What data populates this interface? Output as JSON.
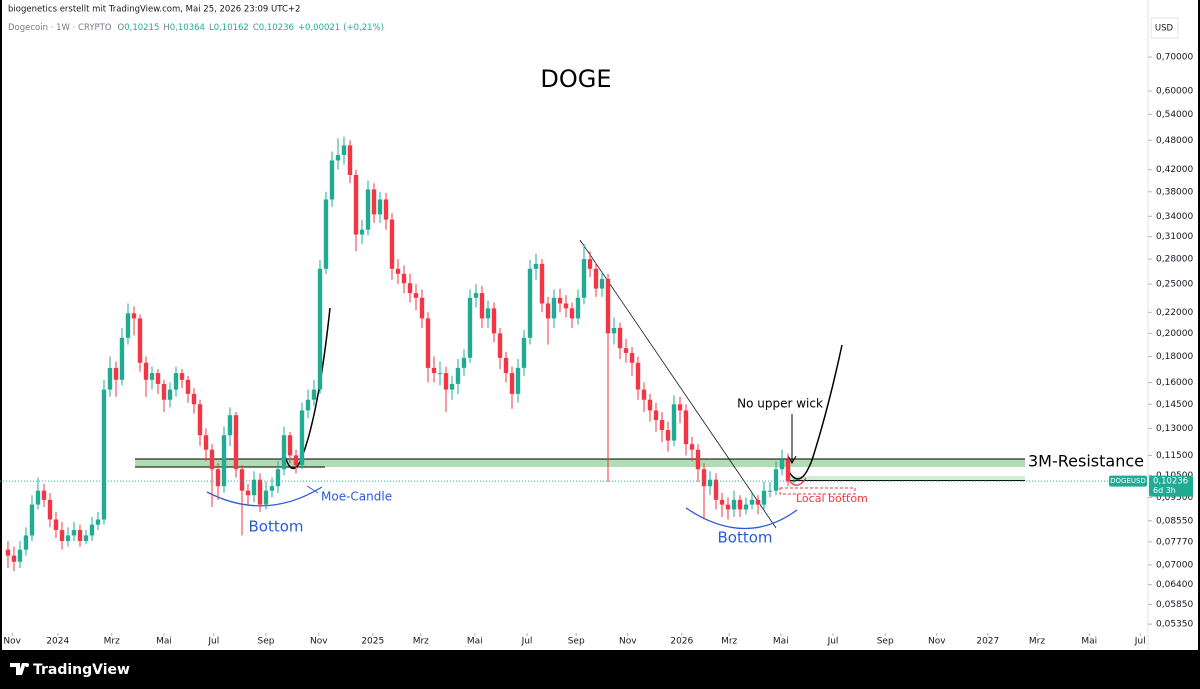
{
  "chart_data": {
    "type": "candlestick",
    "attribution": "biogenetics erstellt mit TradingView.com, Mai 25, 2026 23:09 UTC+2",
    "symbol_info": "Dogecoin · 1W · CRYPTO",
    "legend_values": [
      {
        "key": "O",
        "value": 0.10215,
        "label": "0,10215"
      },
      {
        "key": "H",
        "value": 0.10364,
        "label": "0,10364"
      },
      {
        "key": "L",
        "value": 0.10162,
        "label": "0,10162"
      },
      {
        "key": "C",
        "value": 0.10236,
        "label": "0,10236"
      }
    ],
    "change": {
      "value": 0.00021,
      "label": "+0,00021"
    },
    "change_pct": {
      "value": 0.21,
      "label": "(+0,21%)"
    },
    "currency": "USD",
    "title": "DOGE",
    "annotations": [
      "3M-Resistance",
      "No upper wick",
      "Moe-Candle",
      "Bottom",
      "Bottom",
      "Local bottom"
    ],
    "price_tag": {
      "symbol": "DOGEUSD",
      "value": 0.10236,
      "label": "0,10236",
      "countdown": "6d 3h"
    },
    "brand": "TradingView",
    "up_color": "#22ab94",
    "down_color": "#f23645",
    "log_scale": true,
    "ylim": [
      0.0514,
      0.828
    ],
    "yticks": [
      {
        "value": 0.7,
        "label": "0,70000"
      },
      {
        "value": 0.6,
        "label": "0,60000"
      },
      {
        "value": 0.54,
        "label": "0,54000"
      },
      {
        "value": 0.48,
        "label": "0,48000"
      },
      {
        "value": 0.42,
        "label": "0,42000"
      },
      {
        "value": 0.38,
        "label": "0,38000"
      },
      {
        "value": 0.34,
        "label": "0,34000"
      },
      {
        "value": 0.31,
        "label": "0,31000"
      },
      {
        "value": 0.28,
        "label": "0,28000"
      },
      {
        "value": 0.25,
        "label": "0,25000"
      },
      {
        "value": 0.22,
        "label": "0,22000"
      },
      {
        "value": 0.2,
        "label": "0,20000"
      },
      {
        "value": 0.18,
        "label": "0,18000"
      },
      {
        "value": 0.16,
        "label": "0,16000"
      },
      {
        "value": 0.145,
        "label": "0,14500"
      },
      {
        "value": 0.13,
        "label": "0,13000"
      },
      {
        "value": 0.115,
        "label": "0,11500"
      },
      {
        "value": 0.105,
        "label": "0,10500"
      },
      {
        "value": 0.095,
        "label": "0,09500"
      },
      {
        "value": 0.0855,
        "label": "0,08550"
      },
      {
        "value": 0.0777,
        "label": "0,07770"
      },
      {
        "value": 0.07,
        "label": "0,07000"
      },
      {
        "value": 0.064,
        "label": "0,06400"
      },
      {
        "value": 0.0585,
        "label": "0,05850"
      },
      {
        "value": 0.0535,
        "label": "0,05350"
      }
    ],
    "xlim": [
      -1.33,
      189.83
    ],
    "xticks": [
      {
        "value": 0.7,
        "label": "Nov"
      },
      {
        "value": 8.3,
        "label": "2024"
      },
      {
        "value": 17.3,
        "label": "Mrz"
      },
      {
        "value": 26,
        "label": "Mai"
      },
      {
        "value": 34.3,
        "label": "Jul"
      },
      {
        "value": 43,
        "label": "Sep"
      },
      {
        "value": 51.8,
        "label": "Nov"
      },
      {
        "value": 60.8,
        "label": "2025"
      },
      {
        "value": 68.8,
        "label": "Mrz"
      },
      {
        "value": 77.8,
        "label": "Mai"
      },
      {
        "value": 86.5,
        "label": "Jul"
      },
      {
        "value": 94.7,
        "label": "Sep"
      },
      {
        "value": 103.3,
        "label": "Nov"
      },
      {
        "value": 112.3,
        "label": "2026"
      },
      {
        "value": 120.2,
        "label": "Mrz"
      },
      {
        "value": 128.8,
        "label": "Mai"
      },
      {
        "value": 137.5,
        "label": "Jul"
      },
      {
        "value": 146.2,
        "label": "Sep"
      },
      {
        "value": 154.8,
        "label": "Nov"
      },
      {
        "value": 163.3,
        "label": "2027"
      },
      {
        "value": 171.5,
        "label": "Mrz"
      },
      {
        "value": 180.2,
        "label": "Mai"
      },
      {
        "value": 188.7,
        "label": "Jul"
      }
    ],
    "open": [
      0.075,
      0.073,
      0.071,
      0.075,
      0.08,
      0.092,
      0.098,
      0.094,
      0.086,
      0.082,
      0.078,
      0.08,
      0.082,
      0.078,
      0.08,
      0.084,
      0.086,
      0.155,
      0.171,
      0.162,
      0.196,
      0.219,
      0.214,
      0.175,
      0.162,
      0.167,
      0.159,
      0.148,
      0.155,
      0.167,
      0.162,
      0.152,
      0.145,
      0.126,
      0.118,
      0.108,
      0.1,
      0.126,
      0.138,
      0.108,
      0.098,
      0.096,
      0.103,
      0.092,
      0.098,
      0.1,
      0.108,
      0.126,
      0.115,
      0.11,
      0.141,
      0.148,
      0.155,
      0.268,
      0.367,
      0.438,
      0.449,
      0.469,
      0.41,
      0.313,
      0.32,
      0.384,
      0.343,
      0.367,
      0.335,
      0.268,
      0.262,
      0.251,
      0.24,
      0.235,
      0.214,
      0.171,
      0.167,
      0.167,
      0.155,
      0.159,
      0.171,
      0.179,
      0.235,
      0.24,
      0.214,
      0.224,
      0.2,
      0.179,
      0.167,
      0.152,
      0.171,
      0.196,
      0.268,
      0.274,
      0.229,
      0.214,
      0.235,
      0.229,
      0.224,
      0.214,
      0.235,
      0.28,
      0.268,
      0.245,
      0.256,
      0.2,
      0.205,
      0.187,
      0.183,
      0.175,
      0.155,
      0.148,
      0.141,
      0.135,
      0.129,
      0.123,
      0.145,
      0.141,
      0.121,
      0.118,
      0.108,
      0.1,
      0.103,
      0.094,
      0.092,
      0.09,
      0.094,
      0.09,
      0.092,
      0.094,
      0.092,
      0.098,
      0.098,
      0.108,
      0.113,
      0.10215
    ],
    "high": [
      0.078,
      0.076,
      0.078,
      0.083,
      0.096,
      0.104,
      0.101,
      0.097,
      0.089,
      0.085,
      0.083,
      0.085,
      0.084,
      0.082,
      0.087,
      0.089,
      0.162,
      0.18,
      0.176,
      0.205,
      0.229,
      0.226,
      0.218,
      0.18,
      0.172,
      0.17,
      0.162,
      0.16,
      0.172,
      0.17,
      0.165,
      0.156,
      0.148,
      0.13,
      0.121,
      0.111,
      0.131,
      0.143,
      0.14,
      0.11,
      0.101,
      0.107,
      0.106,
      0.102,
      0.104,
      0.112,
      0.131,
      0.128,
      0.118,
      0.146,
      0.155,
      0.162,
      0.279,
      0.38,
      0.456,
      0.484,
      0.488,
      0.48,
      0.42,
      0.335,
      0.4,
      0.395,
      0.38,
      0.378,
      0.345,
      0.28,
      0.272,
      0.262,
      0.25,
      0.244,
      0.22,
      0.18,
      0.176,
      0.172,
      0.165,
      0.178,
      0.186,
      0.244,
      0.25,
      0.248,
      0.232,
      0.23,
      0.205,
      0.184,
      0.172,
      0.178,
      0.203,
      0.279,
      0.287,
      0.28,
      0.236,
      0.244,
      0.245,
      0.238,
      0.23,
      0.244,
      0.3,
      0.29,
      0.275,
      0.265,
      0.262,
      0.215,
      0.21,
      0.195,
      0.188,
      0.18,
      0.16,
      0.152,
      0.146,
      0.14,
      0.134,
      0.151,
      0.15,
      0.145,
      0.125,
      0.121,
      0.111,
      0.107,
      0.106,
      0.097,
      0.095,
      0.098,
      0.096,
      0.095,
      0.097,
      0.096,
      0.102,
      0.102,
      0.112,
      0.118,
      0.116,
      0.10364
    ],
    "low": [
      0.069,
      0.068,
      0.069,
      0.073,
      0.078,
      0.09,
      0.091,
      0.083,
      0.079,
      0.075,
      0.076,
      0.078,
      0.076,
      0.077,
      0.078,
      0.082,
      0.084,
      0.15,
      0.15,
      0.158,
      0.19,
      0.198,
      0.168,
      0.15,
      0.155,
      0.152,
      0.14,
      0.143,
      0.15,
      0.156,
      0.146,
      0.139,
      0.12,
      0.112,
      0.091,
      0.094,
      0.097,
      0.12,
      0.104,
      0.08,
      0.092,
      0.093,
      0.089,
      0.09,
      0.095,
      0.097,
      0.105,
      0.111,
      0.106,
      0.108,
      0.136,
      0.144,
      0.152,
      0.262,
      0.355,
      0.42,
      0.43,
      0.395,
      0.29,
      0.3,
      0.312,
      0.33,
      0.33,
      0.32,
      0.255,
      0.25,
      0.24,
      0.23,
      0.222,
      0.205,
      0.16,
      0.16,
      0.158,
      0.14,
      0.148,
      0.152,
      0.165,
      0.175,
      0.225,
      0.205,
      0.205,
      0.192,
      0.17,
      0.16,
      0.142,
      0.146,
      0.165,
      0.19,
      0.255,
      0.22,
      0.19,
      0.205,
      0.22,
      0.215,
      0.205,
      0.208,
      0.228,
      0.258,
      0.236,
      0.236,
      0.102,
      0.19,
      0.178,
      0.175,
      0.165,
      0.148,
      0.14,
      0.134,
      0.128,
      0.122,
      0.117,
      0.12,
      0.133,
      0.115,
      0.112,
      0.102,
      0.086,
      0.096,
      0.09,
      0.087,
      0.086,
      0.087,
      0.087,
      0.088,
      0.09,
      0.088,
      0.09,
      0.095,
      0.096,
      0.105,
      0.1,
      0.10162
    ],
    "close": [
      0.073,
      0.071,
      0.075,
      0.08,
      0.092,
      0.098,
      0.094,
      0.086,
      0.082,
      0.078,
      0.08,
      0.082,
      0.078,
      0.08,
      0.084,
      0.086,
      0.155,
      0.171,
      0.162,
      0.196,
      0.219,
      0.214,
      0.175,
      0.162,
      0.167,
      0.159,
      0.148,
      0.155,
      0.167,
      0.162,
      0.152,
      0.145,
      0.126,
      0.118,
      0.108,
      0.1,
      0.126,
      0.138,
      0.108,
      0.098,
      0.096,
      0.103,
      0.092,
      0.098,
      0.1,
      0.108,
      0.126,
      0.115,
      0.11,
      0.141,
      0.148,
      0.155,
      0.268,
      0.367,
      0.438,
      0.449,
      0.469,
      0.41,
      0.313,
      0.32,
      0.384,
      0.343,
      0.367,
      0.335,
      0.268,
      0.262,
      0.251,
      0.24,
      0.235,
      0.214,
      0.171,
      0.167,
      0.167,
      0.155,
      0.159,
      0.171,
      0.179,
      0.235,
      0.24,
      0.214,
      0.224,
      0.2,
      0.179,
      0.167,
      0.152,
      0.171,
      0.196,
      0.268,
      0.274,
      0.229,
      0.214,
      0.235,
      0.229,
      0.224,
      0.214,
      0.235,
      0.28,
      0.268,
      0.245,
      0.256,
      0.2,
      0.205,
      0.187,
      0.183,
      0.175,
      0.155,
      0.148,
      0.141,
      0.135,
      0.129,
      0.123,
      0.145,
      0.141,
      0.121,
      0.118,
      0.108,
      0.1,
      0.103,
      0.094,
      0.092,
      0.09,
      0.094,
      0.09,
      0.092,
      0.094,
      0.092,
      0.098,
      0.098,
      0.108,
      0.113,
      0.1022,
      0.10236
    ]
  }
}
